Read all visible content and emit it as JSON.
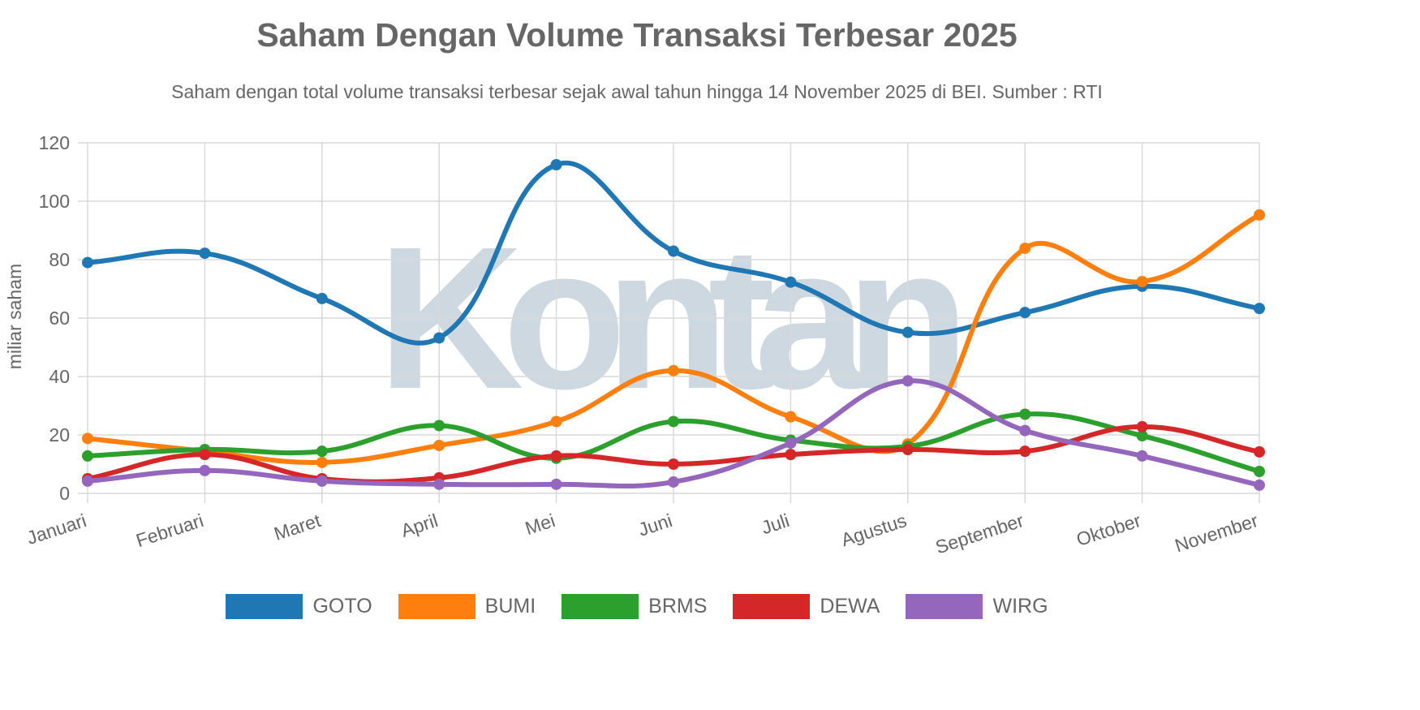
{
  "chart_data": {
    "type": "line",
    "title": "Saham Dengan Volume Transaksi Terbesar 2025",
    "subtitle": "Saham dengan total volume transaksi terbesar sejak awal tahun hingga 14 November 2025 di BEI. Sumber : RTI",
    "xlabel": "",
    "ylabel": "miliar saham",
    "ylim": [
      0,
      120
    ],
    "yticks": [
      "0",
      "20",
      "40",
      "60",
      "80",
      "100",
      "120"
    ],
    "grid": true,
    "smooth": true,
    "legend_position": "bottom",
    "categories": [
      "Januari",
      "Februari",
      "Maret",
      "April",
      "Mei",
      "Juni",
      "Juli",
      "Agustus",
      "September",
      "Oktober",
      "November"
    ],
    "series": [
      {
        "name": "GOTO",
        "color": "#1f77b4",
        "values": [
          79,
          82.2,
          66.7,
          53.2,
          112.5,
          82.9,
          72.3,
          55.1,
          61.9,
          70.9,
          63.3
        ]
      },
      {
        "name": "BUMI",
        "color": "#ff7f0e",
        "values": [
          18.8,
          14.4,
          10.6,
          16.4,
          24.6,
          42,
          26.2,
          16.9,
          83.9,
          72.5,
          95.3
        ]
      },
      {
        "name": "BRMS",
        "color": "#2ca02c",
        "values": [
          12.8,
          15,
          14.4,
          23.2,
          12,
          24.6,
          18.2,
          16.1,
          27.1,
          19.7,
          7.5
        ]
      },
      {
        "name": "DEWA",
        "color": "#d62728",
        "values": [
          5,
          13.3,
          5,
          5.3,
          12.8,
          10,
          13.3,
          15,
          14.4,
          22.8,
          14.2
        ]
      },
      {
        "name": "WIRG",
        "color": "#9467bd",
        "values": [
          4.2,
          7.8,
          4.2,
          3.1,
          3.1,
          3.9,
          17.2,
          38.5,
          21.5,
          12.8,
          2.8
        ]
      }
    ]
  },
  "watermark": "Kontan"
}
